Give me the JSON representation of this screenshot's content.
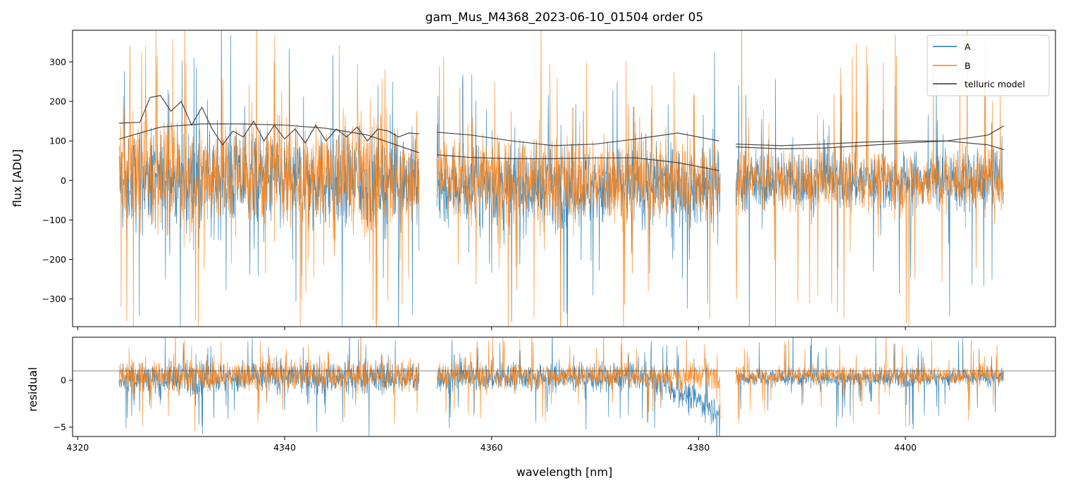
{
  "chart_data": [
    {
      "type": "line",
      "title": "gam_Mus_M4368_2023-06-10_01504  order 05",
      "xlabel": "",
      "ylabel": "flux [ADU]",
      "xlim": [
        4319.5,
        4414.5
      ],
      "ylim": [
        -370,
        380
      ],
      "x_ticks": [
        4320,
        4340,
        4360,
        4380,
        4400
      ],
      "y_ticks": [
        -300,
        -200,
        -100,
        0,
        100,
        200,
        300
      ],
      "x_tick_labels_shown": false,
      "legend_position": "top-right",
      "segments": [
        [
          4324.0,
          4353.0
        ],
        [
          4354.7,
          4382.1
        ],
        [
          4383.6,
          4409.5
        ]
      ],
      "series": [
        {
          "name": "A",
          "color": "#1f77b4",
          "style": "noisy spectrum",
          "approx_stats": {
            "center": 0,
            "spread_segment_1": 110,
            "spread_segment_2": 95,
            "spread_segment_3": 70
          }
        },
        {
          "name": "B",
          "color": "#ff7f0e",
          "style": "noisy spectrum",
          "approx_stats": {
            "center": 0,
            "spread_segment_1": 130,
            "spread_segment_2": 100,
            "spread_segment_3": 70
          }
        },
        {
          "name": "telluric model",
          "color": "#333333",
          "curves": [
            {
              "x": [
                4324,
                4328,
                4332,
                4336,
                4340,
                4344,
                4348,
                4353
              ],
              "y": [
                105,
                135,
                143,
                143,
                140,
                132,
                115,
                70
              ]
            },
            {
              "x": [
                4324,
                4326,
                4327,
                4328,
                4329,
                4330,
                4331,
                4332,
                4333,
                4334,
                4335,
                4336,
                4337,
                4338,
                4339,
                4340,
                4341,
                4342,
                4343,
                4344,
                4345,
                4346,
                4347,
                4348,
                4349,
                4350,
                4351,
                4352,
                4353
              ],
              "y": [
                145,
                147,
                210,
                215,
                175,
                200,
                140,
                185,
                130,
                90,
                125,
                110,
                150,
                100,
                140,
                105,
                130,
                95,
                140,
                100,
                130,
                110,
                135,
                100,
                130,
                125,
                110,
                120,
                118
              ]
            },
            {
              "x": [
                4354.7,
                4358,
                4362,
                4366,
                4370,
                4374,
                4378,
                4382
              ],
              "y": [
                65,
                58,
                55,
                55,
                57,
                57,
                45,
                25
              ]
            },
            {
              "x": [
                4354.7,
                4358,
                4362,
                4366,
                4370,
                4374,
                4378,
                4382
              ],
              "y": [
                122,
                115,
                100,
                88,
                92,
                105,
                120,
                100
              ]
            },
            {
              "x": [
                4383.6,
                4388,
                4392,
                4396,
                4400,
                4404,
                4408,
                4409.5
              ],
              "y": [
                92,
                88,
                92,
                97,
                100,
                100,
                90,
                78
              ]
            },
            {
              "x": [
                4383.6,
                4388,
                4392,
                4396,
                4400,
                4404,
                4408,
                4409.5
              ],
              "y": [
                85,
                80,
                82,
                88,
                95,
                100,
                115,
                138
              ]
            }
          ]
        }
      ]
    },
    {
      "type": "line",
      "title": "",
      "xlabel": "wavelength [nm]",
      "ylabel": "residual",
      "xlim": [
        4319.5,
        4414.5
      ],
      "ylim": [
        -6,
        4.6
      ],
      "x_ticks": [
        4320,
        4340,
        4360,
        4380,
        4400
      ],
      "x_tick_labels": [
        "4320",
        "4340",
        "4360",
        "4380",
        "4400"
      ],
      "y_ticks": [
        -5,
        0
      ],
      "y_tick_labels": [
        "−5",
        "0"
      ],
      "reference_line_y": 1,
      "segments": [
        [
          4324.0,
          4353.0
        ],
        [
          4354.7,
          4382.1
        ],
        [
          4383.6,
          4409.5
        ]
      ],
      "series": [
        {
          "name": "A",
          "color": "#1f77b4",
          "style": "noisy residual",
          "approx_stats": {
            "center": 0.3,
            "spread_segment_1": 1.6,
            "spread_segment_2": 1.4,
            "spread_segment_3": 0.9
          }
        },
        {
          "name": "B",
          "color": "#ff7f0e",
          "style": "noisy residual",
          "approx_stats": {
            "center": 0.5,
            "spread_segment_1": 1.5,
            "spread_segment_2": 1.2,
            "spread_segment_3": 0.9
          }
        }
      ]
    }
  ],
  "top": {
    "title": "gam_Mus_M4368_2023-06-10_01504  order 05",
    "ylabel": "flux [ADU]",
    "y_tick_labels": [
      "−300",
      "−200",
      "−100",
      "0",
      "100",
      "200",
      "300"
    ],
    "legend": [
      "A",
      "B",
      "telluric model"
    ]
  },
  "bottom": {
    "xlabel": "wavelength [nm]",
    "ylabel": "residual",
    "x_tick_labels": [
      "4320",
      "4340",
      "4360",
      "4380",
      "4400"
    ],
    "y_tick_labels": [
      "−5",
      "0"
    ]
  }
}
